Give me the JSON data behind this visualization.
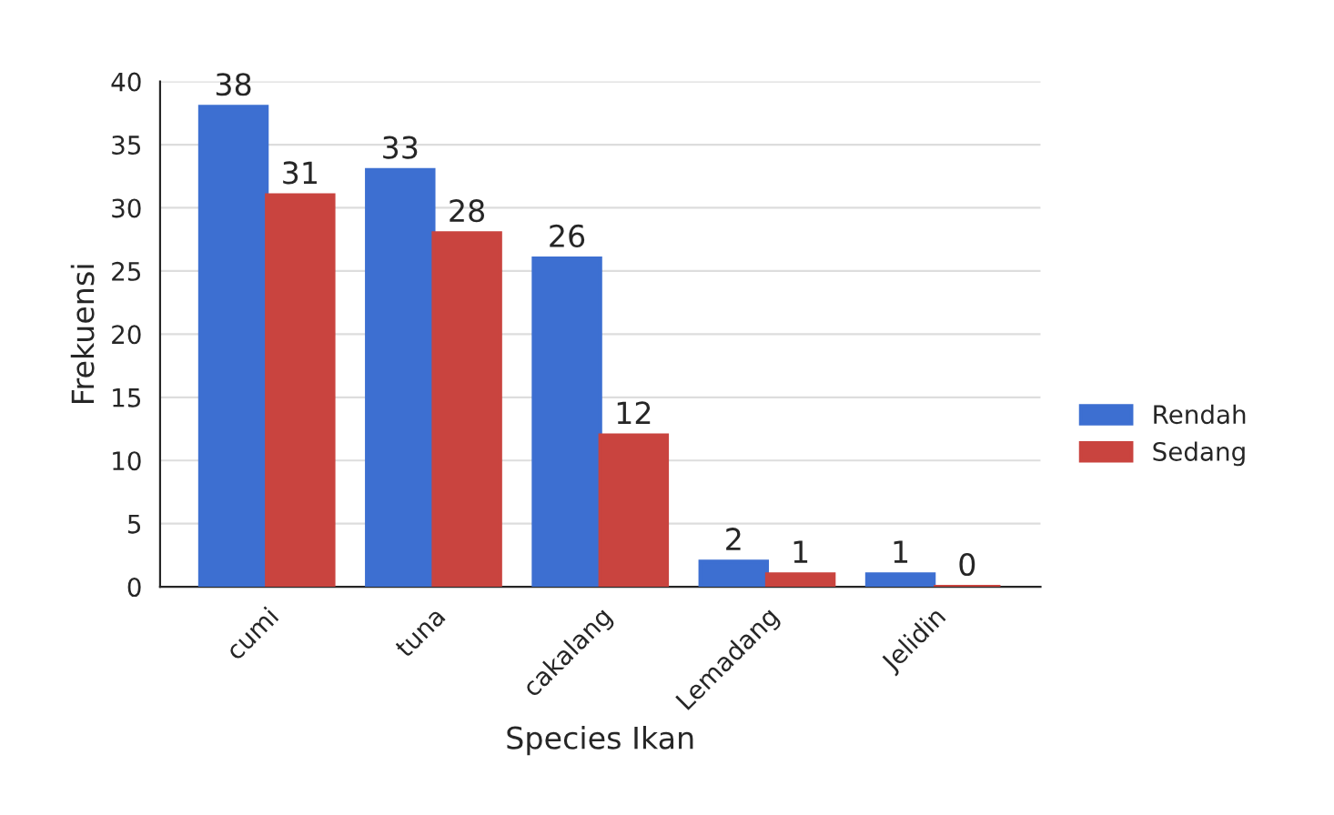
{
  "chart_data": {
    "type": "bar",
    "xlabel": "Species Ikan",
    "ylabel": "Frekuensi",
    "categories": [
      "cumi",
      "tuna",
      "cakalang",
      "Lemadang",
      "Jelidin"
    ],
    "series": [
      {
        "name": "Rendah",
        "color": "#3d6fd1",
        "values": [
          38,
          33,
          26,
          2,
          1
        ]
      },
      {
        "name": "Sedang",
        "color": "#c9443f",
        "values": [
          31,
          28,
          12,
          1,
          0
        ]
      }
    ],
    "ylim": [
      0,
      40
    ],
    "yticks": [
      0,
      5,
      10,
      15,
      20,
      25,
      30,
      35,
      40
    ],
    "grid": "y",
    "legend": "right",
    "data_labels": true
  }
}
